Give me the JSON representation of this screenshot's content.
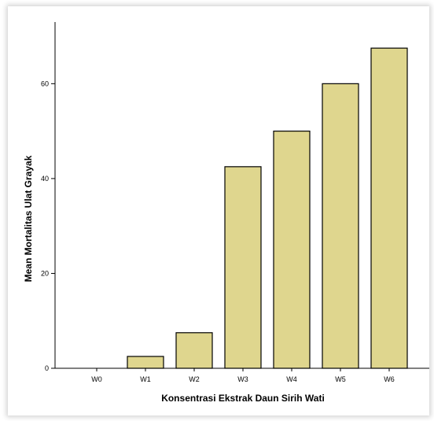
{
  "chart_data": {
    "type": "bar",
    "title": "",
    "xlabel": "Konsentrasi Ekstrak Daun Sirih Wati",
    "ylabel": "Mean Mortalitas Ulat Grayak",
    "categories": [
      "W0",
      "W1",
      "W2",
      "W3",
      "W4",
      "W5",
      "W6"
    ],
    "values": [
      0,
      2.5,
      7.5,
      42.5,
      50,
      60,
      67.5
    ],
    "ylim": [
      0,
      73
    ],
    "yticks": [
      0,
      20,
      40,
      60
    ],
    "grid": false,
    "bar_color": "#dfd68e",
    "bar_edge_color": "#000000"
  }
}
